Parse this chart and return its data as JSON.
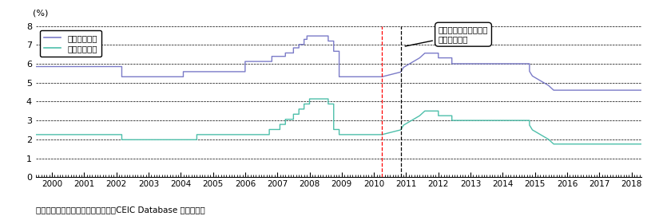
{
  "ylabel": "(%)",
  "source": "資料：中国人民銀行、国家統計局、CEIC Database から作成。",
  "legend_labels": [
    "貸出基準金利",
    "預金基準金利"
  ],
  "loan_color": "#7b7bc8",
  "deposit_color": "#4dbfaa",
  "annotation_text": "４兆元の景気対策後、\n金利引き上げ",
  "red_vline_x": 2010.25,
  "black_vline_x": 2010.83,
  "ylim": [
    0,
    8
  ],
  "xlim_start": 1999.5,
  "xlim_end": 2018.3,
  "loan_rate_data": [
    [
      1999.5,
      5.85
    ],
    [
      2002.17,
      5.85
    ],
    [
      2002.17,
      5.31
    ],
    [
      2004.08,
      5.31
    ],
    [
      2004.08,
      5.58
    ],
    [
      2006.0,
      5.58
    ],
    [
      2006.0,
      6.12
    ],
    [
      2006.83,
      6.12
    ],
    [
      2006.83,
      6.39
    ],
    [
      2007.25,
      6.39
    ],
    [
      2007.25,
      6.57
    ],
    [
      2007.5,
      6.57
    ],
    [
      2007.5,
      6.84
    ],
    [
      2007.67,
      6.84
    ],
    [
      2007.67,
      7.02
    ],
    [
      2007.83,
      7.02
    ],
    [
      2007.83,
      7.29
    ],
    [
      2007.92,
      7.29
    ],
    [
      2007.92,
      7.47
    ],
    [
      2008.58,
      7.47
    ],
    [
      2008.58,
      7.2
    ],
    [
      2008.75,
      7.2
    ],
    [
      2008.75,
      6.66
    ],
    [
      2008.92,
      6.66
    ],
    [
      2008.92,
      5.58
    ],
    [
      2008.92,
      5.31
    ],
    [
      2010.25,
      5.31
    ],
    [
      2010.83,
      5.56
    ],
    [
      2010.92,
      5.81
    ],
    [
      2011.17,
      6.06
    ],
    [
      2011.42,
      6.31
    ],
    [
      2011.58,
      6.56
    ],
    [
      2012.0,
      6.56
    ],
    [
      2012.0,
      6.31
    ],
    [
      2012.42,
      6.31
    ],
    [
      2012.42,
      6.0
    ],
    [
      2012.67,
      6.0
    ],
    [
      2014.83,
      6.0
    ],
    [
      2014.83,
      5.6
    ],
    [
      2014.92,
      5.35
    ],
    [
      2015.17,
      5.1
    ],
    [
      2015.42,
      4.85
    ],
    [
      2015.58,
      4.6
    ],
    [
      2018.3,
      4.6
    ]
  ],
  "deposit_rate_data": [
    [
      1999.5,
      2.25
    ],
    [
      2002.17,
      2.25
    ],
    [
      2002.17,
      1.98
    ],
    [
      2004.5,
      1.98
    ],
    [
      2004.5,
      2.25
    ],
    [
      2006.75,
      2.25
    ],
    [
      2006.75,
      2.52
    ],
    [
      2007.08,
      2.52
    ],
    [
      2007.08,
      2.79
    ],
    [
      2007.25,
      2.79
    ],
    [
      2007.25,
      3.06
    ],
    [
      2007.5,
      3.06
    ],
    [
      2007.5,
      3.33
    ],
    [
      2007.67,
      3.33
    ],
    [
      2007.67,
      3.6
    ],
    [
      2007.83,
      3.6
    ],
    [
      2007.83,
      3.87
    ],
    [
      2008.0,
      3.87
    ],
    [
      2008.0,
      4.14
    ],
    [
      2008.58,
      4.14
    ],
    [
      2008.58,
      3.87
    ],
    [
      2008.75,
      3.87
    ],
    [
      2008.75,
      2.52
    ],
    [
      2008.92,
      2.52
    ],
    [
      2008.92,
      2.25
    ],
    [
      2010.25,
      2.25
    ],
    [
      2010.83,
      2.5
    ],
    [
      2010.92,
      2.75
    ],
    [
      2011.17,
      3.0
    ],
    [
      2011.42,
      3.25
    ],
    [
      2011.58,
      3.5
    ],
    [
      2012.0,
      3.5
    ],
    [
      2012.0,
      3.25
    ],
    [
      2012.42,
      3.25
    ],
    [
      2012.42,
      3.0
    ],
    [
      2012.67,
      3.0
    ],
    [
      2014.83,
      3.0
    ],
    [
      2014.83,
      2.75
    ],
    [
      2014.92,
      2.5
    ],
    [
      2015.17,
      2.25
    ],
    [
      2015.42,
      2.0
    ],
    [
      2015.58,
      1.75
    ],
    [
      2018.3,
      1.75
    ]
  ]
}
